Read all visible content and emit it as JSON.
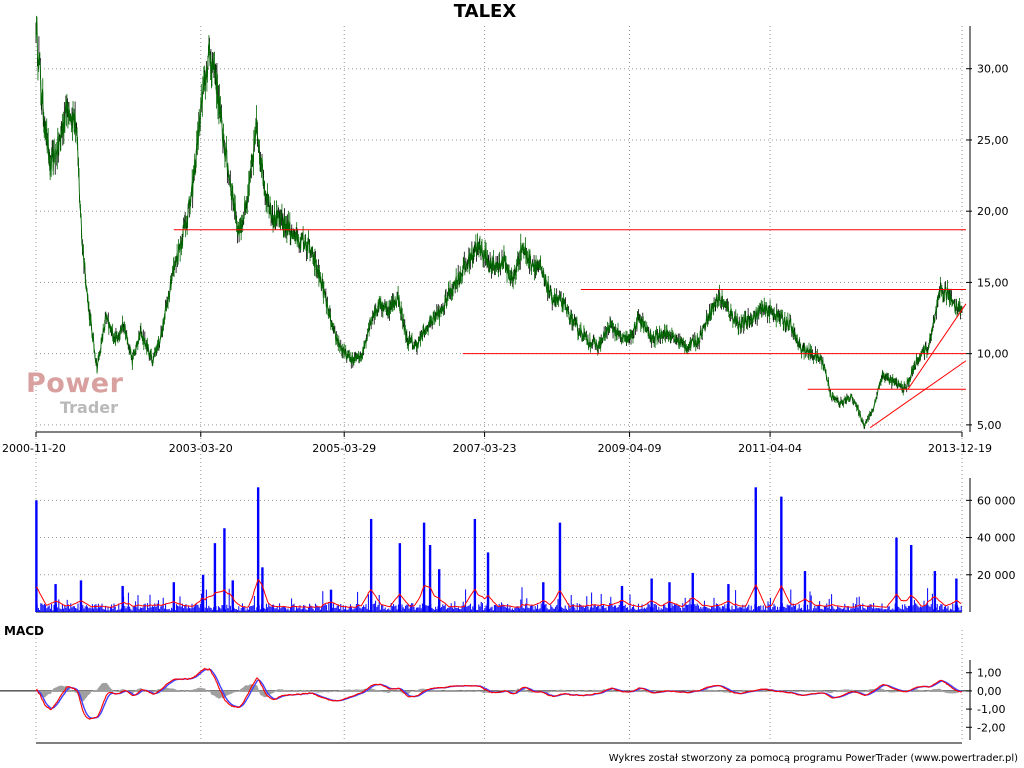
{
  "title": "TALEX",
  "footer": "Wykres został stworzony za pomocą programu PowerTrader (www.powertrader.pl)",
  "logo": {
    "power": "Power",
    "trader": "Trader"
  },
  "macd_label": "MACD",
  "colors": {
    "price": "#006400",
    "candle_dark": "#000000",
    "support_resistance": "#ff0000",
    "volume": "#0000ff",
    "volume_avg": "#ff0000",
    "macd_line": "#ff0000",
    "macd_signal": "#4040ff",
    "macd_hist": "#a0a0a0",
    "grid": "#999999"
  },
  "chart_data": [
    {
      "type": "line",
      "name": "price",
      "title": "TALEX",
      "x_ticks": [
        "2000-11-20",
        "2003-03-20",
        "2005-03-29",
        "2007-03-23",
        "2009-04-09",
        "2011-04-04",
        "2013-12-19"
      ],
      "y_ticks": [
        "5,00",
        "10,00",
        "15,00",
        "20,00",
        "25,00",
        "30,00"
      ],
      "ylim": [
        4.5,
        33
      ],
      "x_end": "2013-12-19",
      "grid": true,
      "series": [
        {
          "points": [
            [
              "2000-11-20",
              33.0
            ],
            [
              "2000-12-20",
              28.0
            ],
            [
              "2001-02-01",
              23.0
            ],
            [
              "2001-03-15",
              24.5
            ],
            [
              "2001-05-01",
              27.5
            ],
            [
              "2001-06-15",
              26.0
            ],
            [
              "2001-07-15",
              18.0
            ],
            [
              "2001-08-20",
              13.0
            ],
            [
              "2001-10-01",
              9.0
            ],
            [
              "2001-11-15",
              12.5
            ],
            [
              "2002-01-01",
              11.0
            ],
            [
              "2002-02-15",
              12.0
            ],
            [
              "2002-04-01",
              9.5
            ],
            [
              "2002-05-15",
              11.5
            ],
            [
              "2002-07-15",
              9.5
            ],
            [
              "2002-09-01",
              11.5
            ],
            [
              "2002-10-15",
              15.0
            ],
            [
              "2002-12-01",
              17.5
            ],
            [
              "2003-02-01",
              21.0
            ],
            [
              "2003-03-20",
              27.0
            ],
            [
              "2003-05-01",
              31.0
            ],
            [
              "2003-06-01",
              30.0
            ],
            [
              "2003-07-15",
              25.0
            ],
            [
              "2003-09-01",
              21.0
            ],
            [
              "2003-10-01",
              18.5
            ],
            [
              "2003-11-15",
              20.5
            ],
            [
              "2004-01-01",
              26.0
            ],
            [
              "2004-02-15",
              21.5
            ],
            [
              "2004-04-01",
              19.5
            ],
            [
              "2004-06-01",
              19.0
            ],
            [
              "2004-08-01",
              18.0
            ],
            [
              "2004-10-01",
              17.5
            ],
            [
              "2004-12-01",
              15.0
            ],
            [
              "2005-02-01",
              11.5
            ],
            [
              "2005-03-29",
              10.0
            ],
            [
              "2005-05-15",
              9.5
            ],
            [
              "2005-07-01",
              10.0
            ],
            [
              "2005-08-15",
              12.5
            ],
            [
              "2005-10-01",
              13.5
            ],
            [
              "2005-11-15",
              13.0
            ],
            [
              "2006-01-01",
              14.0
            ],
            [
              "2006-02-15",
              11.0
            ],
            [
              "2006-04-01",
              10.5
            ],
            [
              "2006-05-15",
              11.5
            ],
            [
              "2006-07-01",
              12.5
            ],
            [
              "2006-08-15",
              13.0
            ],
            [
              "2006-10-01",
              14.5
            ],
            [
              "2006-11-15",
              15.5
            ],
            [
              "2007-01-01",
              16.5
            ],
            [
              "2007-02-01",
              17.5
            ],
            [
              "2007-03-23",
              17.0
            ],
            [
              "2007-05-01",
              16.0
            ],
            [
              "2007-07-01",
              16.5
            ],
            [
              "2007-08-15",
              15.0
            ],
            [
              "2007-10-01",
              17.5
            ],
            [
              "2007-11-15",
              16.5
            ],
            [
              "2008-01-01",
              16.0
            ],
            [
              "2008-03-01",
              14.0
            ],
            [
              "2008-05-01",
              13.5
            ],
            [
              "2008-07-01",
              12.0
            ],
            [
              "2008-09-01",
              11.0
            ],
            [
              "2008-11-01",
              10.5
            ],
            [
              "2009-01-01",
              12.0
            ],
            [
              "2009-03-01",
              11.0
            ],
            [
              "2009-04-09",
              11.0
            ],
            [
              "2009-06-01",
              12.5
            ],
            [
              "2009-08-01",
              11.0
            ],
            [
              "2009-10-01",
              11.5
            ],
            [
              "2009-12-01",
              11.0
            ],
            [
              "2010-02-01",
              10.5
            ],
            [
              "2010-04-01",
              11.0
            ],
            [
              "2010-06-01",
              13.0
            ],
            [
              "2010-07-15",
              14.0
            ],
            [
              "2010-09-01",
              13.0
            ],
            [
              "2010-11-01",
              12.0
            ],
            [
              "2011-01-01",
              12.5
            ],
            [
              "2011-02-15",
              13.0
            ],
            [
              "2011-04-04",
              13.0
            ],
            [
              "2011-06-01",
              12.5
            ],
            [
              "2011-07-15",
              12.0
            ],
            [
              "2011-09-01",
              10.5
            ],
            [
              "2011-11-01",
              10.0
            ],
            [
              "2012-01-01",
              9.5
            ],
            [
              "2012-02-15",
              7.0
            ],
            [
              "2012-04-01",
              6.5
            ],
            [
              "2012-06-01",
              7.0
            ],
            [
              "2012-08-01",
              5.0
            ],
            [
              "2012-09-15",
              6.0
            ],
            [
              "2012-11-01",
              8.5
            ],
            [
              "2013-01-01",
              8.0
            ],
            [
              "2013-03-01",
              7.5
            ],
            [
              "2013-05-01",
              9.5
            ],
            [
              "2013-07-01",
              10.5
            ],
            [
              "2013-09-01",
              14.5
            ],
            [
              "2013-10-15",
              14.0
            ],
            [
              "2013-12-19",
              13.0
            ]
          ]
        }
      ],
      "annotations": [
        {
          "type": "hline",
          "y": 18.7,
          "x_from": "2002-11-01",
          "x_to": "2013-12-19"
        },
        {
          "type": "hline",
          "y": 14.5,
          "x_from": "2008-08-01",
          "x_to": "2013-12-19"
        },
        {
          "type": "hline",
          "y": 10.0,
          "x_from": "2006-12-01",
          "x_to": "2013-12-19"
        },
        {
          "type": "hline",
          "y": 7.5,
          "x_from": "2011-10-15",
          "x_to": "2013-12-19"
        },
        {
          "type": "trend",
          "from": [
            "2012-09-01",
            4.8
          ],
          "to": [
            "2013-12-19",
            9.5
          ]
        },
        {
          "type": "trend",
          "from": [
            "2013-03-15",
            7.5
          ],
          "to": [
            "2013-12-19",
            13.5
          ]
        }
      ]
    },
    {
      "type": "bar",
      "name": "volume",
      "y_ticks": [
        "20 000",
        "40 000",
        "60 000"
      ],
      "ylim": [
        0,
        72000
      ],
      "grid": true,
      "spikes": [
        [
          "2000-11-22",
          60000
        ],
        [
          "2001-03-01",
          15000
        ],
        [
          "2001-07-10",
          17000
        ],
        [
          "2002-02-10",
          14000
        ],
        [
          "2002-11-01",
          16000
        ],
        [
          "2003-04-01",
          20000
        ],
        [
          "2003-06-01",
          37000
        ],
        [
          "2003-07-20",
          45000
        ],
        [
          "2003-09-01",
          17000
        ],
        [
          "2004-01-10",
          67000
        ],
        [
          "2004-02-01",
          24000
        ],
        [
          "2005-01-20",
          12000
        ],
        [
          "2005-08-15",
          50000
        ],
        [
          "2006-01-10",
          37000
        ],
        [
          "2006-05-15",
          48000
        ],
        [
          "2006-06-15",
          36000
        ],
        [
          "2006-08-01",
          23000
        ],
        [
          "2007-02-01",
          50000
        ],
        [
          "2007-04-10",
          32000
        ],
        [
          "2008-01-20",
          16000
        ],
        [
          "2008-04-15",
          48000
        ],
        [
          "2009-03-01",
          14000
        ],
        [
          "2009-08-01",
          18000
        ],
        [
          "2009-11-01",
          16000
        ],
        [
          "2010-03-01",
          21000
        ],
        [
          "2010-09-01",
          15000
        ],
        [
          "2011-01-20",
          67000
        ],
        [
          "2011-06-01",
          62000
        ],
        [
          "2011-10-01",
          22000
        ],
        [
          "2013-01-15",
          40000
        ],
        [
          "2013-04-01",
          36000
        ],
        [
          "2013-08-01",
          22000
        ],
        [
          "2013-11-20",
          18000
        ]
      ]
    },
    {
      "type": "line",
      "name": "MACD",
      "title": "MACD",
      "y_ticks": [
        "1,00",
        "0,00",
        "-1,00",
        "-2,00"
      ],
      "ylim": [
        -2.7,
        1.7
      ],
      "grid": true
    }
  ]
}
